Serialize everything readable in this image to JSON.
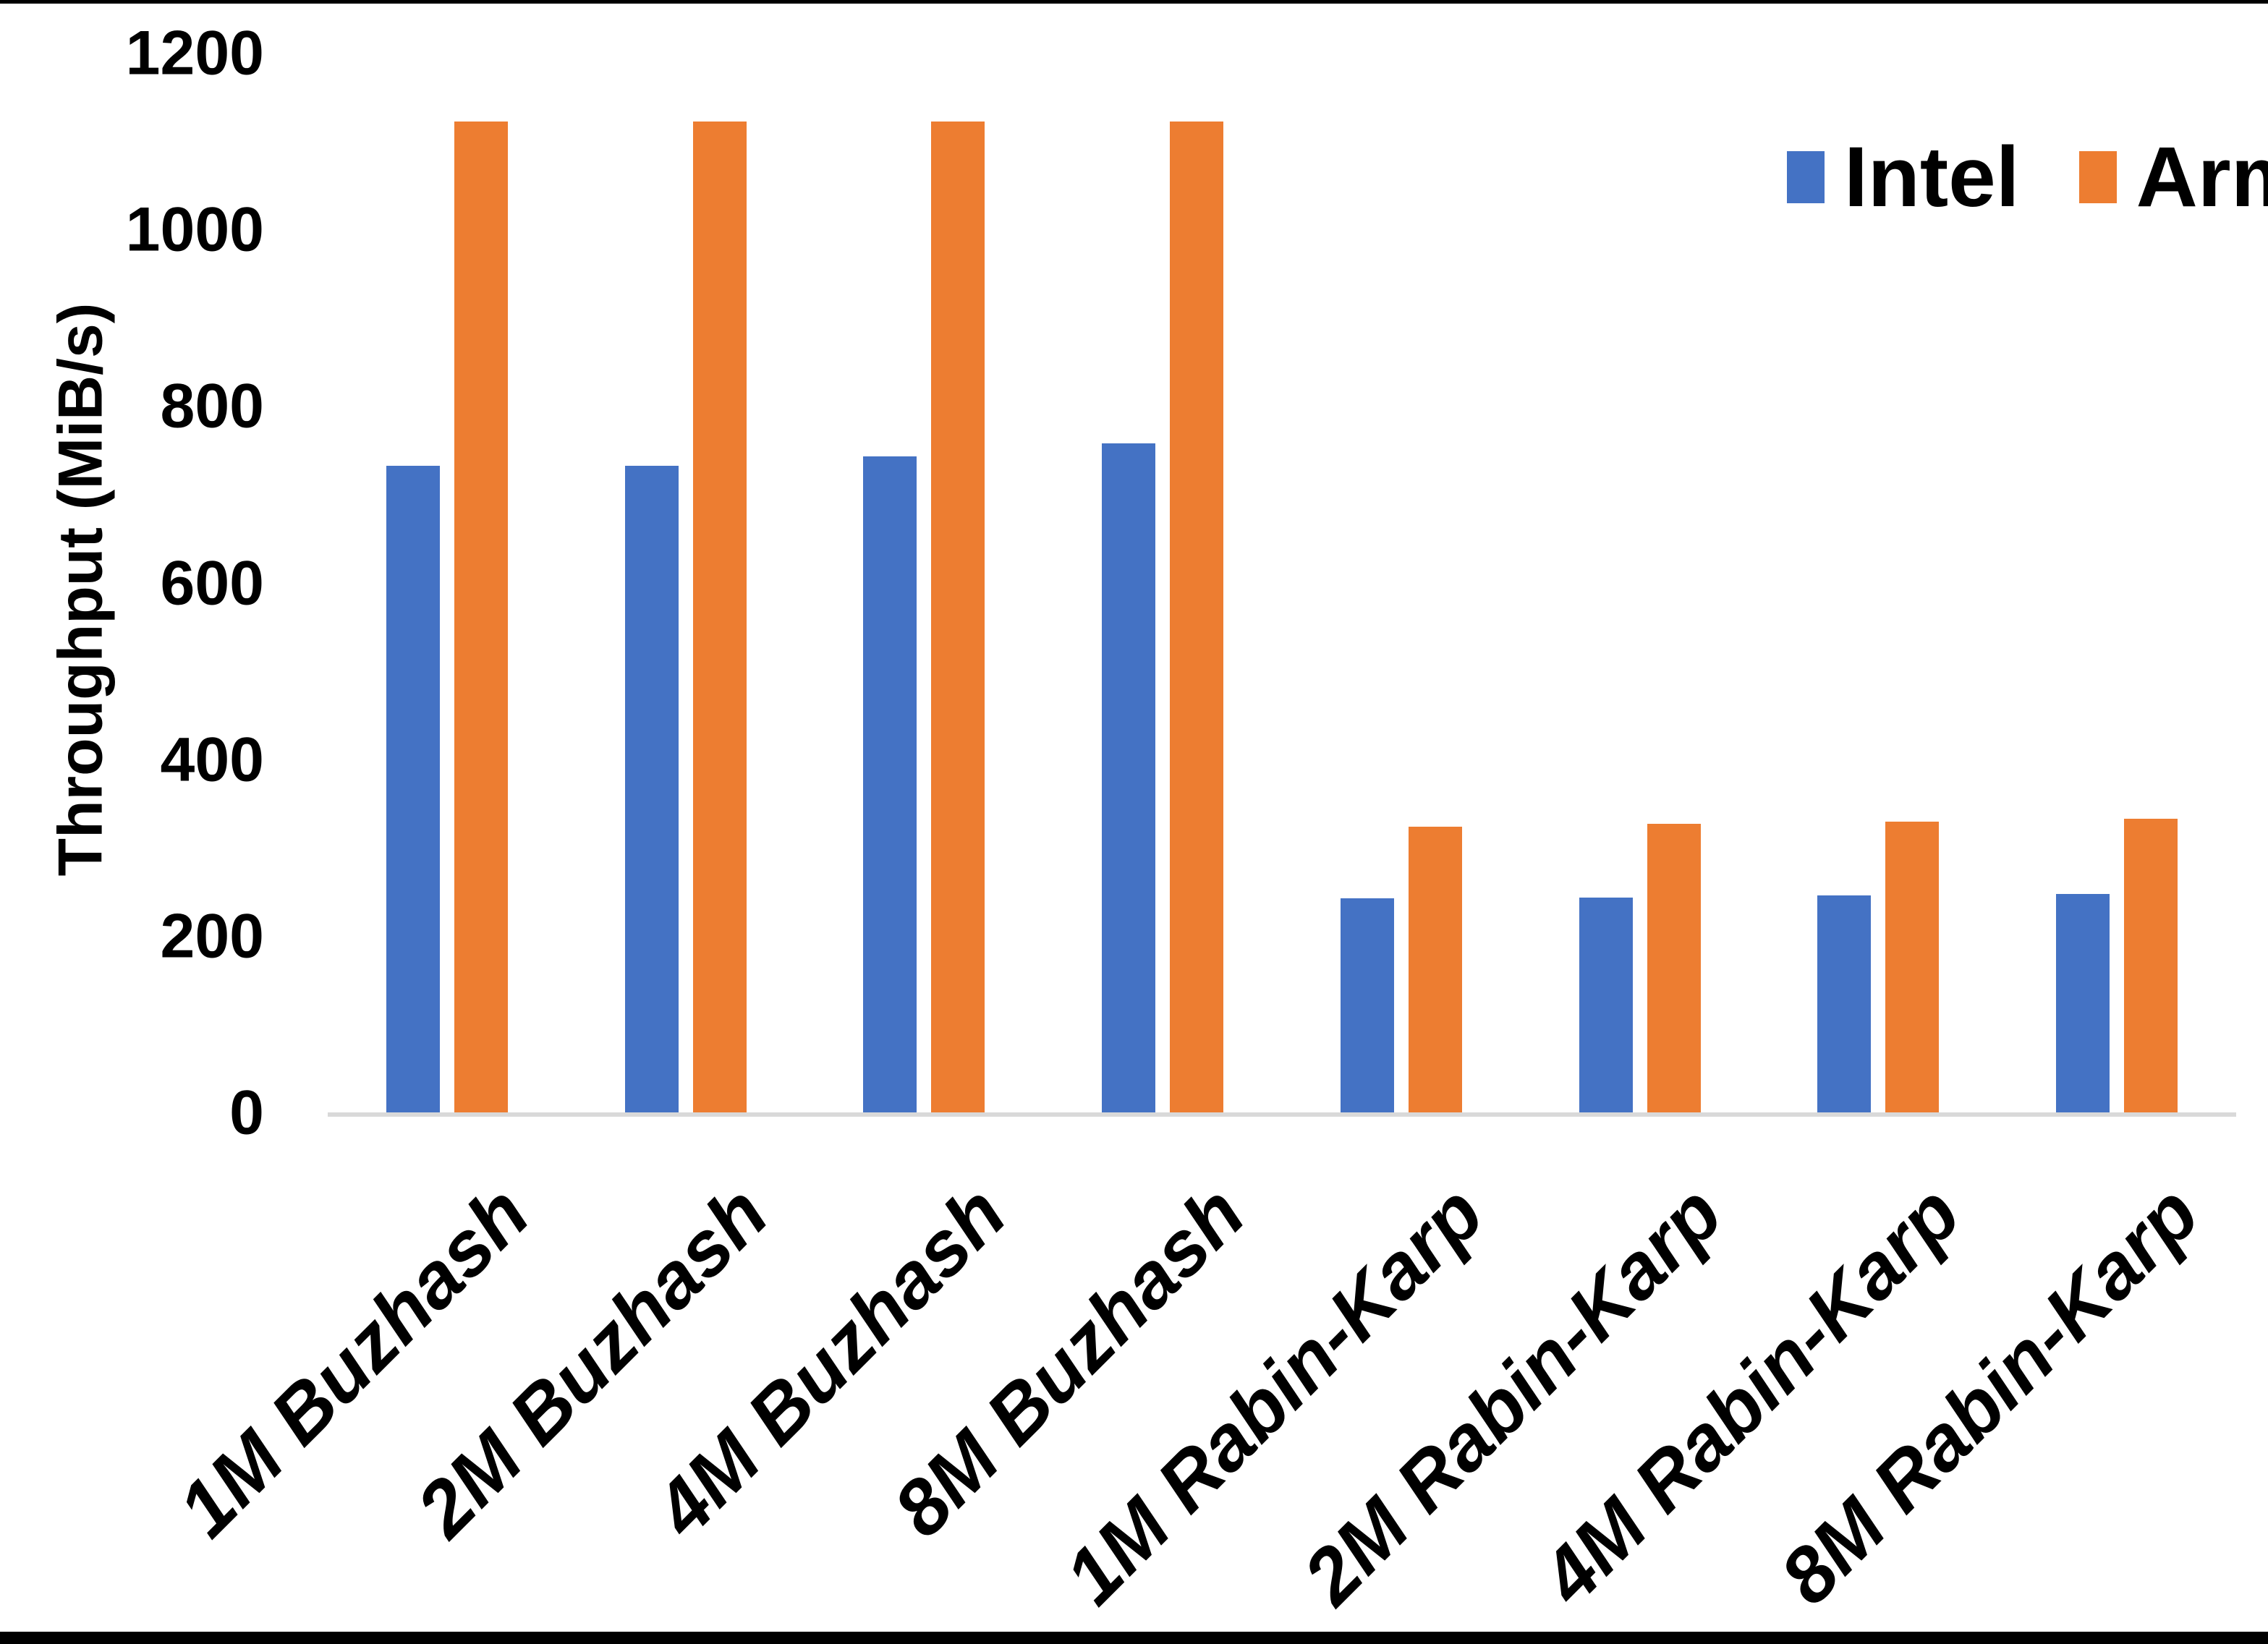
{
  "page": {
    "background": "#FFFFFF",
    "top_border_color": "#000000",
    "bottom_bar_color": "#000000"
  },
  "chart_data": {
    "type": "bar",
    "title": "",
    "xlabel": "",
    "ylabel": "Throughput (MiB/s)",
    "categories": [
      "1M Buzhash",
      "2M Buzhash",
      "4M Buzhash",
      "8M Buzhash",
      "1M Rabin-Karp",
      "2M Rabin-Karp",
      "4M Rabin-Karp",
      "8M Rabin-Karp"
    ],
    "series": [
      {
        "name": "Intel",
        "color": "#4472C4",
        "values": [
          735,
          735,
          745,
          760,
          245,
          246,
          248,
          250
        ]
      },
      {
        "name": "Arm",
        "color": "#ED7D31",
        "values": [
          1125,
          1125,
          1125,
          1125,
          326,
          329,
          332,
          335
        ]
      }
    ],
    "ylim": [
      0,
      1200
    ],
    "yticks": [
      0,
      200,
      400,
      600,
      800,
      1000,
      1200
    ],
    "grid": false,
    "legend_position": "top-right",
    "axis_line_color": "#D9D9D9",
    "text_color": "#000000"
  }
}
